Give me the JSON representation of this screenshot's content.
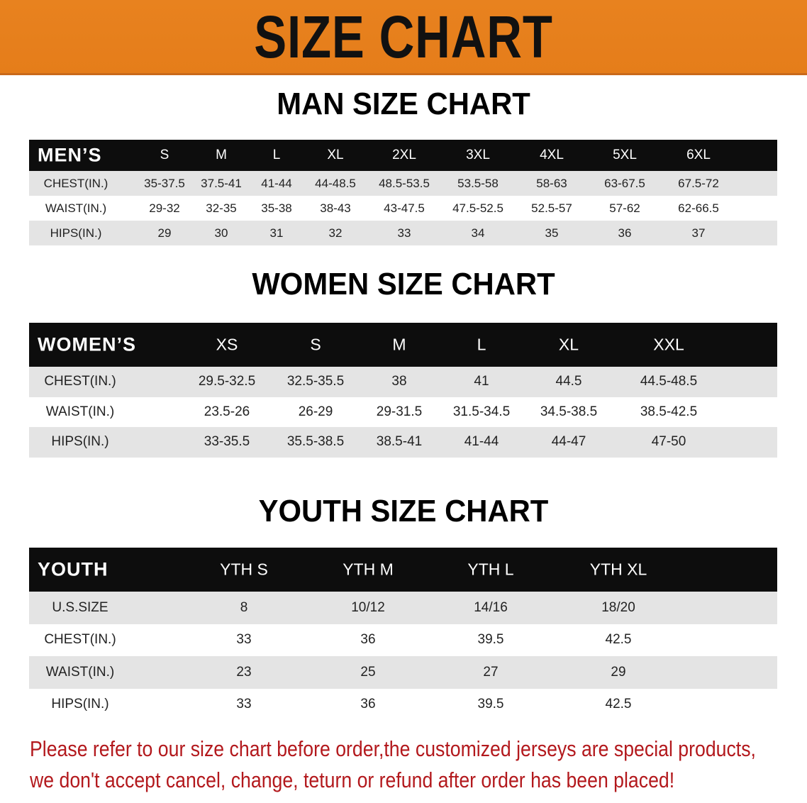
{
  "banner": {
    "title": "SIZE CHART",
    "color": "#e8821f"
  },
  "men": {
    "title": "MAN SIZE CHART",
    "header": "MEN’S",
    "sizes": [
      "S",
      "M",
      "L",
      "XL",
      "2XL",
      "3XL",
      "4XL",
      "5XL",
      "6XL"
    ],
    "rows": [
      {
        "label": "CHEST(IN.)",
        "values": [
          "35-37.5",
          "37.5-41",
          "41-44",
          "44-48.5",
          "48.5-53.5",
          "53.5-58",
          "58-63",
          "63-67.5",
          "67.5-72"
        ]
      },
      {
        "label": "WAIST(IN.)",
        "values": [
          "29-32",
          "32-35",
          "35-38",
          "38-43",
          "43-47.5",
          "47.5-52.5",
          "52.5-57",
          "57-62",
          "62-66.5"
        ]
      },
      {
        "label": "HIPS(IN.)",
        "values": [
          "29",
          "30",
          "31",
          "32",
          "33",
          "34",
          "35",
          "36",
          "37"
        ]
      }
    ]
  },
  "women": {
    "title": "WOMEN SIZE CHART",
    "header": "WOMEN’S",
    "sizes": [
      "XS",
      "S",
      "M",
      "L",
      "XL",
      "XXL"
    ],
    "rows": [
      {
        "label": "CHEST(IN.)",
        "values": [
          "29.5-32.5",
          "32.5-35.5",
          "38",
          "41",
          "44.5",
          "44.5-48.5"
        ]
      },
      {
        "label": "WAIST(IN.)",
        "values": [
          "23.5-26",
          "26-29",
          "29-31.5",
          "31.5-34.5",
          "34.5-38.5",
          "38.5-42.5"
        ]
      },
      {
        "label": "HIPS(IN.)",
        "values": [
          "33-35.5",
          "35.5-38.5",
          "38.5-41",
          "41-44",
          "44-47",
          "47-50"
        ]
      }
    ]
  },
  "youth": {
    "title": "YOUTH SIZE CHART",
    "header": "YOUTH",
    "sizes": [
      "YTH S",
      "YTH M",
      "YTH L",
      "YTH XL"
    ],
    "rows": [
      {
        "label": "U.S.SIZE",
        "values": [
          "8",
          "10/12",
          "14/16",
          "18/20"
        ]
      },
      {
        "label": "CHEST(IN.)",
        "values": [
          "33",
          "36",
          "39.5",
          "42.5"
        ]
      },
      {
        "label": "WAIST(IN.)",
        "values": [
          "23",
          "25",
          "27",
          "29"
        ]
      },
      {
        "label": "HIPS(IN.)",
        "values": [
          "33",
          "36",
          "39.5",
          "42.5"
        ]
      }
    ]
  },
  "notice": {
    "line1": "Please refer to our size chart before order,the customized jerseys are special products,",
    "line2": "we don't accept cancel, change, teturn or refund after order has been placed!",
    "color": "#b3191d"
  }
}
